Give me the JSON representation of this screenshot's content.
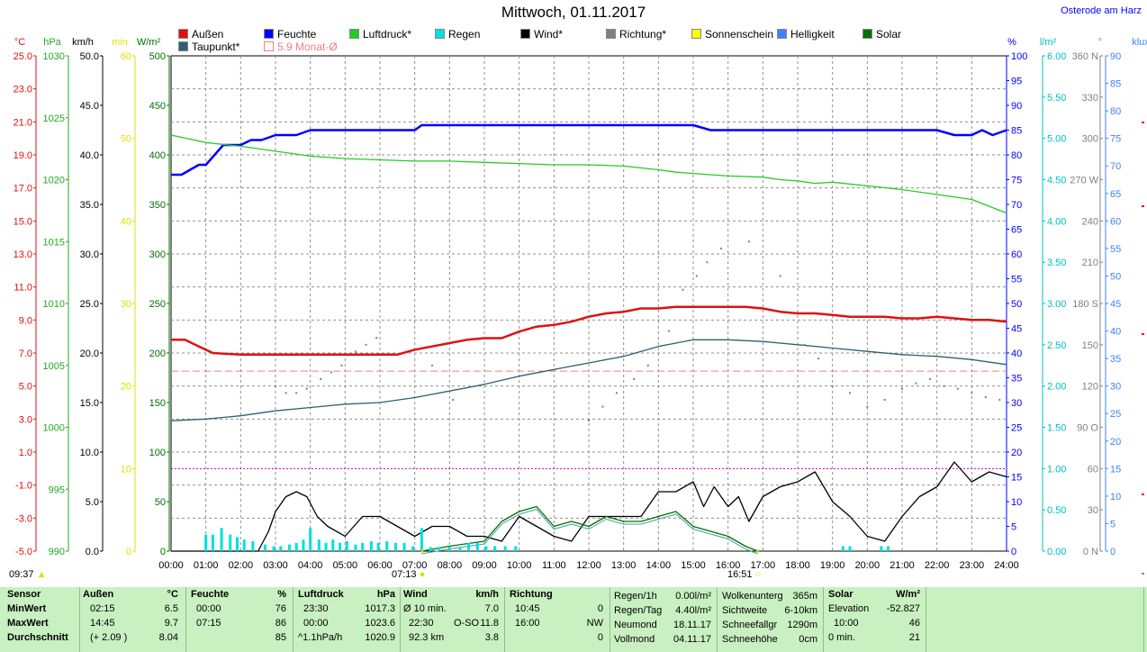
{
  "header": {
    "title": "Mittwoch, 01.11.2017",
    "location": "Osterode am Harz"
  },
  "legend": [
    {
      "label": "Außen",
      "color": "#e01010"
    },
    {
      "label": "Feuchte",
      "color": "#0000ff"
    },
    {
      "label": "Luftdruck*",
      "color": "#22cc22"
    },
    {
      "label": "Regen",
      "color": "#00e0e0"
    },
    {
      "label": "Wind*",
      "color": "#000000"
    },
    {
      "label": "Richtung*",
      "color": "#808080"
    },
    {
      "label": "Sonnenschein",
      "color": "#ffff00"
    },
    {
      "label": "Helligkeit",
      "color": "#4080ff"
    },
    {
      "label": "Solar",
      "color": "#007000"
    },
    {
      "label": "Taupunkt*",
      "color": "#306070"
    },
    {
      "label": "5.9 Monat-Ø",
      "color": "#f08080",
      "outline": true
    }
  ],
  "axes": {
    "left": {
      "temp": {
        "unit": "°C",
        "color": "#e01010",
        "ticks": [
          "25.0",
          "23.0",
          "21.0",
          "19.0",
          "17.0",
          "15.0",
          "13.0",
          "11.0",
          "9.0",
          "7.0",
          "5.0",
          "3.0",
          "1.0",
          "-1.0",
          "-3.0",
          "-5.0"
        ]
      },
      "hpa": {
        "unit": "hPa",
        "color": "#22aa22",
        "ticks": [
          "1030",
          "1025",
          "1020",
          "1015",
          "1010",
          "1005",
          "1000",
          "995",
          "990"
        ]
      },
      "kmh": {
        "unit": "km/h",
        "color": "#000000",
        "ticks": [
          "50.0",
          "45.0",
          "40.0",
          "35.0",
          "30.0",
          "25.0",
          "20.0",
          "15.0",
          "10.0",
          "5.0",
          "0.0"
        ]
      },
      "min": {
        "unit": "min",
        "color": "#e0e000",
        "ticks": [
          "60",
          "50",
          "40",
          "30",
          "20",
          "10",
          "0"
        ]
      },
      "wm2": {
        "unit": "W/m²",
        "color": "#007000",
        "ticks": [
          "500",
          "450",
          "400",
          "350",
          "300",
          "250",
          "200",
          "150",
          "100",
          "50",
          "0"
        ]
      }
    },
    "right": {
      "pct": {
        "unit": "%",
        "color": "#0000ff",
        "ticks": [
          "100",
          "95",
          "90",
          "85",
          "80",
          "75",
          "70",
          "65",
          "60",
          "55",
          "50",
          "45",
          "40",
          "35",
          "30",
          "25",
          "20",
          "15",
          "10",
          "5",
          "0"
        ]
      },
      "lm2": {
        "unit": "l/m²",
        "color": "#00c0c0",
        "ticks": [
          "6.00",
          "5.50",
          "5.00",
          "4.50",
          "4.00",
          "3.50",
          "3.00",
          "2.50",
          "2.00",
          "1.50",
          "1.00",
          "0.50",
          "0.00"
        ]
      },
      "deg": {
        "unit": "°",
        "color": "#808080",
        "ticks": [
          "360 N",
          "330",
          "300",
          "270 W",
          "240",
          "210",
          "180 S",
          "150",
          "120",
          "90 O",
          "60",
          "30",
          "0 N"
        ]
      },
      "klux": {
        "unit": "klux",
        "color": "#4080ff",
        "ticks": [
          "90",
          "85",
          "80",
          "75",
          "70",
          "65",
          "60",
          "55",
          "50",
          "45",
          "40",
          "35",
          "30",
          "25",
          "20",
          "15",
          "10",
          "5",
          "0"
        ]
      }
    },
    "x_ticks": [
      "00:00",
      "01:00",
      "02:00",
      "03:00",
      "04:00",
      "05:00",
      "06:00",
      "07:00",
      "08:00",
      "09:00",
      "10:00",
      "11:00",
      "12:00",
      "13:00",
      "14:00",
      "15:00",
      "16:00",
      "17:00",
      "18:00",
      "19:00",
      "20:00",
      "21:00",
      "22:00",
      "23:00",
      "24:00"
    ]
  },
  "sun": {
    "start": "09:37",
    "sunrise": "07:13",
    "sunset": "16:51"
  },
  "chart_data": {
    "type": "line",
    "x_unit": "hour",
    "xlim": [
      0,
      24
    ],
    "month_avg_temp": 5.9,
    "series": [
      {
        "name": "Außen",
        "unit": "°C",
        "color": "#e01010",
        "ylim": [
          -5,
          25
        ],
        "x": [
          0,
          0.4,
          0.8,
          1.2,
          2.0,
          3.0,
          4.0,
          5.0,
          6.0,
          6.5,
          7.0,
          7.5,
          8.0,
          8.5,
          9.0,
          9.5,
          10.0,
          10.5,
          11.0,
          11.5,
          12.0,
          12.5,
          13.0,
          13.5,
          14.0,
          14.5,
          15.0,
          15.5,
          16.0,
          16.5,
          17.0,
          17.5,
          18.0,
          18.5,
          19.0,
          19.5,
          20.0,
          20.5,
          21.0,
          21.5,
          22.0,
          22.5,
          23.0,
          23.5,
          24.0
        ],
        "y": [
          7.8,
          7.8,
          7.4,
          7.0,
          6.9,
          6.9,
          6.9,
          6.9,
          6.9,
          6.9,
          7.2,
          7.4,
          7.6,
          7.8,
          7.9,
          7.9,
          8.3,
          8.6,
          8.7,
          8.9,
          9.2,
          9.4,
          9.5,
          9.7,
          9.7,
          9.8,
          9.8,
          9.8,
          9.8,
          9.8,
          9.7,
          9.5,
          9.4,
          9.4,
          9.3,
          9.2,
          9.2,
          9.2,
          9.1,
          9.1,
          9.2,
          9.1,
          9.0,
          9.0,
          8.9
        ]
      },
      {
        "name": "Taupunkt*",
        "unit": "°C",
        "color": "#306070",
        "ylim": [
          -5,
          25
        ],
        "x": [
          0,
          1,
          2,
          3,
          4,
          5,
          6,
          7,
          8,
          9,
          10,
          11,
          12,
          13,
          14,
          15,
          16,
          17,
          18,
          19,
          20,
          21,
          22,
          23,
          24
        ],
        "y": [
          2.9,
          3.0,
          3.2,
          3.5,
          3.7,
          3.9,
          4.0,
          4.3,
          4.7,
          5.1,
          5.6,
          6.0,
          6.4,
          6.8,
          7.4,
          7.8,
          7.8,
          7.7,
          7.5,
          7.3,
          7.1,
          6.9,
          6.8,
          6.6,
          6.3
        ]
      },
      {
        "name": "Feuchte",
        "unit": "%",
        "color": "#0000ff",
        "ylim": [
          0,
          100
        ],
        "x": [
          0,
          0.3,
          0.8,
          1.0,
          1.5,
          2.0,
          2.3,
          2.6,
          3.0,
          3.6,
          4.0,
          5.0,
          6.0,
          7.0,
          7.2,
          7.5,
          8,
          9,
          10,
          11,
          12,
          13,
          14,
          15,
          15.5,
          16,
          17,
          18,
          19,
          20,
          21,
          22,
          22.5,
          23,
          23.3,
          23.6,
          24
        ],
        "y": [
          76,
          76,
          78,
          78,
          82,
          82,
          83,
          83,
          84,
          84,
          85,
          85,
          85,
          85,
          86,
          86,
          86,
          86,
          86,
          86,
          86,
          86,
          86,
          86,
          85,
          85,
          85,
          85,
          85,
          85,
          85,
          85,
          84,
          84,
          85,
          84,
          85
        ]
      },
      {
        "name": "Luftdruck*",
        "unit": "hPa",
        "color": "#22cc22",
        "ylim": [
          990,
          1030
        ],
        "x": [
          0,
          0.5,
          1,
          2,
          3,
          4,
          5,
          6,
          7,
          8,
          9,
          10,
          11,
          12,
          13,
          14,
          14.5,
          15,
          16,
          17,
          17.5,
          18,
          18.5,
          19,
          20,
          21,
          22,
          23,
          24
        ],
        "y": [
          1023.6,
          1023.3,
          1023.0,
          1022.7,
          1022.3,
          1021.9,
          1021.7,
          1021.6,
          1021.5,
          1021.5,
          1021.4,
          1021.3,
          1021.2,
          1021.2,
          1021.1,
          1020.8,
          1020.6,
          1020.5,
          1020.3,
          1020.2,
          1020.0,
          1019.9,
          1019.7,
          1019.8,
          1019.5,
          1019.2,
          1018.8,
          1018.4,
          1017.3
        ]
      },
      {
        "name": "Wind*",
        "unit": "km/h",
        "color": "#000000",
        "ylim": [
          0,
          50
        ],
        "x": [
          0,
          2.5,
          2.8,
          3.0,
          3.3,
          3.6,
          3.9,
          4.2,
          4.5,
          5.0,
          5.5,
          6.0,
          6.5,
          7.0,
          7.5,
          8.0,
          8.5,
          9.0,
          9.5,
          10.0,
          10.5,
          11.0,
          11.5,
          12.0,
          12.5,
          13.0,
          13.5,
          14.0,
          14.5,
          15.0,
          15.3,
          15.6,
          16.0,
          16.3,
          16.6,
          17.0,
          17.5,
          18.0,
          18.5,
          19.0,
          19.5,
          20.0,
          20.5,
          21.0,
          21.5,
          22.0,
          22.5,
          23.0,
          23.5,
          24.0
        ],
        "y": [
          0,
          0,
          2,
          4,
          5.5,
          6,
          5.5,
          3.5,
          2.5,
          1.5,
          3.5,
          3.5,
          2.5,
          1.5,
          2.5,
          2.5,
          1.5,
          1.5,
          1.0,
          3.5,
          2.5,
          1.5,
          1.0,
          3.5,
          3.5,
          3.5,
          3.5,
          6.0,
          6.0,
          7.0,
          4.5,
          6.5,
          4.5,
          5.5,
          3.0,
          5.5,
          6.5,
          7.0,
          8.0,
          5.0,
          3.5,
          1.5,
          1.0,
          3.5,
          5.5,
          6.5,
          9.0,
          7.0,
          8.0,
          7.5
        ]
      },
      {
        "name": "Solar",
        "unit": "W/m²",
        "color": "#007000",
        "ylim": [
          0,
          500
        ],
        "x": [
          7.2,
          8.0,
          9.0,
          9.5,
          10.0,
          10.5,
          11.0,
          11.5,
          12.0,
          12.5,
          13.0,
          13.5,
          14.0,
          14.5,
          15.0,
          15.5,
          16.0,
          16.5,
          16.85
        ],
        "y": [
          0,
          5,
          10,
          30,
          40,
          45,
          25,
          30,
          25,
          35,
          30,
          30,
          35,
          40,
          25,
          20,
          15,
          5,
          0
        ]
      },
      {
        "name": "Regen",
        "unit": "l/m²",
        "color": "#00e0e0",
        "ylim": [
          0,
          6
        ],
        "x": [
          1,
          1.2,
          1.45,
          1.7,
          1.9,
          2.1,
          2.35,
          2.7,
          2.95,
          3.15,
          3.4,
          3.6,
          3.8,
          4.0,
          4.25,
          4.45,
          4.65,
          4.85,
          5.05,
          5.3,
          5.5,
          5.75,
          5.95,
          6.2,
          6.45,
          6.7,
          6.95,
          7.2,
          7.45,
          7.7,
          8.0,
          8.3,
          8.55,
          8.8,
          9.05,
          9.3,
          9.6,
          9.9,
          19.3,
          19.5,
          20.4,
          20.6
        ],
        "y": [
          0.2,
          0.2,
          0.28,
          0.2,
          0.17,
          0.14,
          0.12,
          0.08,
          0.06,
          0.06,
          0.08,
          0.1,
          0.14,
          0.28,
          0.14,
          0.1,
          0.14,
          0.1,
          0.12,
          0.08,
          0.1,
          0.12,
          0.1,
          0.12,
          0.1,
          0.1,
          0.06,
          0.28,
          0.05,
          0.05,
          0.05,
          0.05,
          0.1,
          0.1,
          0.06,
          0.06,
          0.06,
          0.06,
          0.06,
          0.06,
          0.06,
          0.06
        ]
      },
      {
        "name": "Richtung*",
        "unit": "°",
        "color": "#808080",
        "ylim": [
          0,
          360
        ],
        "x": [
          3.0,
          3.3,
          3.6,
          3.9,
          4.3,
          4.6,
          4.9,
          5.3,
          5.6,
          5.9,
          7.5,
          8.1,
          12.0,
          12.4,
          12.8,
          13.3,
          13.7,
          14.3,
          14.7,
          15.1,
          15.4,
          15.8,
          16.6,
          17.5,
          18.2,
          18.6,
          19.0,
          19.5,
          20.0,
          20.5,
          21.0,
          21.4,
          21.8,
          22.2,
          22.6,
          23.0,
          23.4,
          23.8
        ],
        "y": [
          120,
          115,
          115,
          118,
          125,
          130,
          135,
          145,
          150,
          155,
          135,
          110,
          95,
          105,
          115,
          125,
          135,
          160,
          190,
          200,
          210,
          220,
          225,
          200,
          150,
          140,
          120,
          115,
          105,
          110,
          118,
          122,
          125,
          120,
          118,
          115,
          112,
          110
        ]
      }
    ]
  },
  "footer": {
    "sensor": {
      "header": "Sensor",
      "rows": [
        "MinWert",
        "MaxWert",
        "Durchschnitt"
      ]
    },
    "aussen": {
      "header": "Außen",
      "unit": "°C",
      "rows": [
        [
          "02:15",
          "6.5"
        ],
        [
          "14:45",
          "9.7"
        ],
        [
          "(+ 2.09 )",
          "8.04"
        ]
      ]
    },
    "feuchte": {
      "header": "Feuchte",
      "unit": "%",
      "rows": [
        [
          "00:00",
          "76"
        ],
        [
          "07:15",
          "86"
        ],
        [
          "",
          "85"
        ]
      ]
    },
    "luftdruck": {
      "header": "Luftdruck",
      "unit": "hPa",
      "rows": [
        [
          "23:30",
          "1017.3"
        ],
        [
          "00:00",
          "1023.6"
        ],
        [
          "^1.1hPa/h",
          "1020.9"
        ]
      ]
    },
    "wind": {
      "header": "Wind",
      "unit": "km/h",
      "rows": [
        [
          "Ø 10 min.",
          "",
          "7.0"
        ],
        [
          "22:30",
          "O-SO",
          "11.8"
        ],
        [
          "92.3 km",
          "",
          "3.8"
        ]
      ]
    },
    "richtung": {
      "header": "Richtung",
      "rows": [
        [
          "10:45",
          "0"
        ],
        [
          "16:00",
          "NW"
        ],
        [
          "",
          "0"
        ]
      ]
    },
    "regen": {
      "rows": [
        [
          "Regen/1h",
          "0.00l/m²"
        ],
        [
          "Regen/Tag",
          "4.40l/m²"
        ],
        [
          "Neumond",
          "18.11.17"
        ],
        [
          "Vollmond",
          "04.11.17"
        ]
      ]
    },
    "wolken": {
      "rows": [
        [
          "Wolkenunterg",
          "365m"
        ],
        [
          "Sichtweite",
          "6-10km"
        ],
        [
          "Schneefallgr",
          "1290m"
        ],
        [
          "Schneehöhe",
          "0cm"
        ]
      ]
    },
    "solar": {
      "header": "Solar",
      "unit": "W/m²",
      "rows": [
        [
          "Elevation",
          "-52.827"
        ],
        [
          "10:00",
          "46"
        ],
        [
          "0 min.",
          "21"
        ]
      ]
    }
  }
}
